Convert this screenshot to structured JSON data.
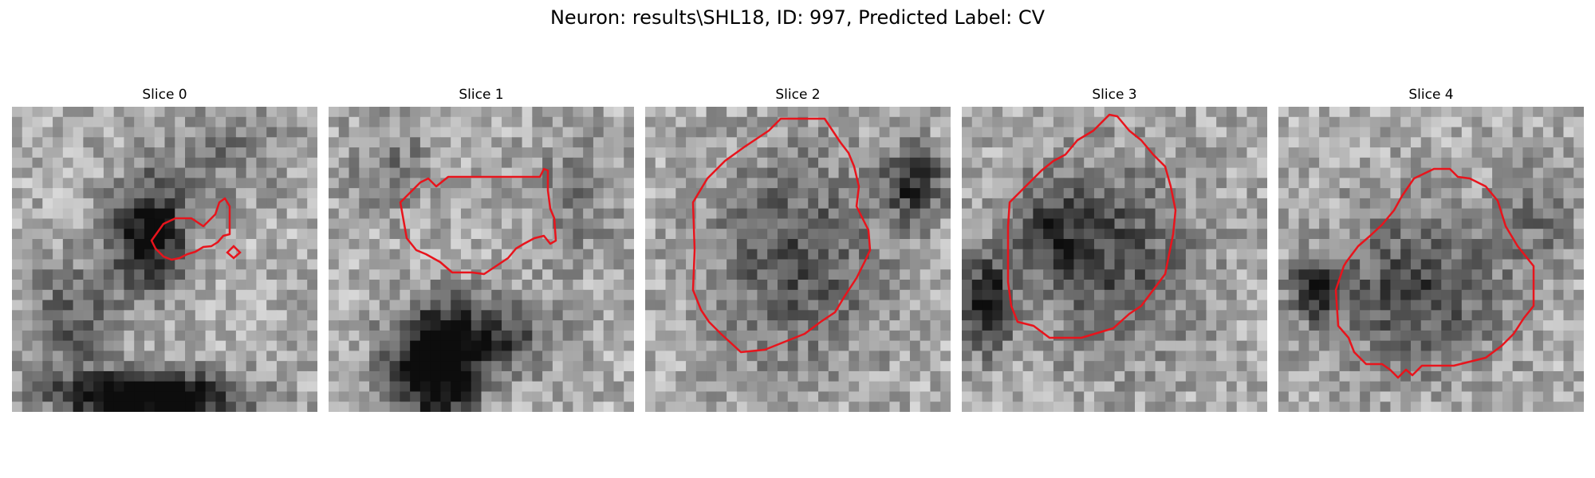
{
  "figure": {
    "title": "Neuron: results\\SHL18, ID: 997, Predicted Label: CV"
  },
  "panels": [
    {
      "title": "Slice 0",
      "contour_color": "#e8141c",
      "dark_blobs": [
        [
          0.45,
          0.42,
          0.12,
          0.18,
          0.7
        ],
        [
          0.45,
          0.95,
          0.28,
          0.08,
          0.9
        ],
        [
          0.2,
          0.7,
          0.15,
          0.2,
          0.3
        ],
        [
          0.7,
          0.15,
          0.2,
          0.15,
          0.2
        ]
      ]
    },
    {
      "title": "Slice 1",
      "contour_color": "#e8141c",
      "dark_blobs": [
        [
          0.35,
          0.85,
          0.15,
          0.18,
          0.8
        ],
        [
          0.55,
          0.75,
          0.2,
          0.12,
          0.4
        ],
        [
          0.2,
          0.2,
          0.15,
          0.15,
          0.2
        ],
        [
          0.8,
          0.3,
          0.15,
          0.2,
          0.2
        ]
      ]
    },
    {
      "title": "Slice 2",
      "contour_color": "#e8141c",
      "dark_blobs": [
        [
          0.5,
          0.5,
          0.28,
          0.34,
          0.35
        ],
        [
          0.88,
          0.25,
          0.1,
          0.12,
          0.5
        ]
      ]
    },
    {
      "title": "Slice 3",
      "contour_color": "#e8141c",
      "dark_blobs": [
        [
          0.5,
          0.5,
          0.28,
          0.32,
          0.35
        ],
        [
          0.08,
          0.65,
          0.08,
          0.15,
          0.6
        ],
        [
          0.3,
          0.4,
          0.15,
          0.15,
          0.3
        ]
      ]
    },
    {
      "title": "Slice 4",
      "contour_color": "#e8141c",
      "dark_blobs": [
        [
          0.45,
          0.6,
          0.28,
          0.25,
          0.4
        ],
        [
          0.12,
          0.6,
          0.08,
          0.1,
          0.5
        ],
        [
          0.85,
          0.35,
          0.12,
          0.2,
          0.2
        ]
      ]
    }
  ]
}
